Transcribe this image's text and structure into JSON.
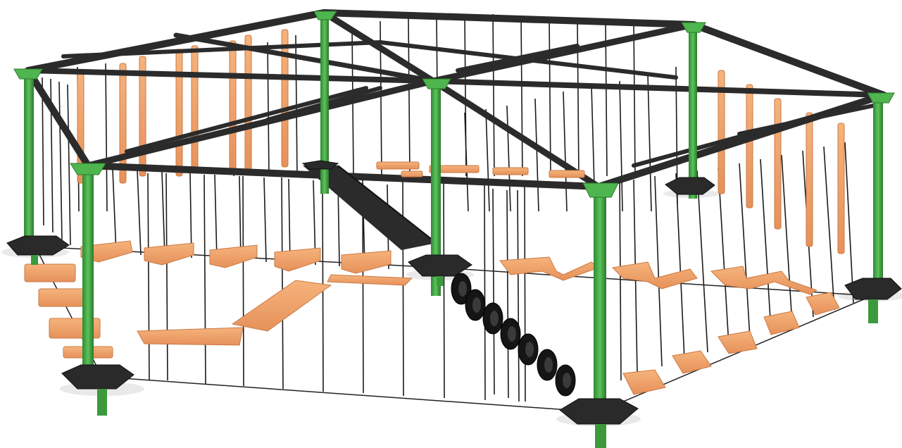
{
  "scene": {
    "subject": "",
    "colors": {
      "frame": "#2b2b2b",
      "post": "#3c9a3c",
      "post_highlight": "#5cc25c",
      "base": "#2a2a2a",
      "wood": "#f0a268",
      "wood_edge": "#c97a44",
      "rope": "#1a1a1a",
      "tire": "#151515",
      "background": "#ffffff"
    }
  }
}
